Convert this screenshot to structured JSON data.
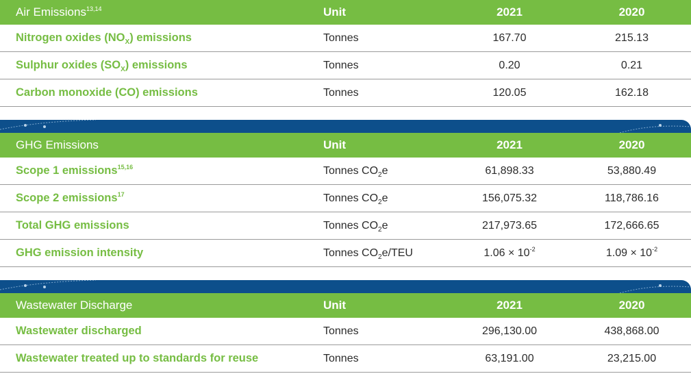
{
  "sections": [
    {
      "title": "Air Emissions",
      "title_sup": "13,14",
      "headers": {
        "unit": "Unit",
        "y2021": "2021",
        "y2020": "2020"
      },
      "rows": [
        {
          "pre": "Nitrogen oxides (NO",
          "sub": "X",
          "post": ") emissions",
          "unit_pre": "Tonnes",
          "unit_sub": "",
          "unit_post": "",
          "v2021": "167.70",
          "v2020": "215.13"
        },
        {
          "pre": "Sulphur oxides (SO",
          "sub": "X",
          "post": ") emissions",
          "unit_pre": "Tonnes",
          "unit_sub": "",
          "unit_post": "",
          "v2021": "0.20",
          "v2020": "0.21"
        },
        {
          "pre": "Carbon monoxide (CO) emissions",
          "sub": "",
          "post": "",
          "unit_pre": "Tonnes",
          "unit_sub": "",
          "unit_post": "",
          "v2021": "120.05",
          "v2020": "162.18"
        }
      ]
    },
    {
      "title": "GHG Emissions",
      "title_sup": "",
      "headers": {
        "unit": "Unit",
        "y2021": "2021",
        "y2020": "2020"
      },
      "rows": [
        {
          "pre": "Scope 1 emissions",
          "sup": "15,16",
          "unit_pre": "Tonnes CO",
          "unit_sub": "2",
          "unit_post": "e",
          "v2021": "61,898.33",
          "v2020": "53,880.49"
        },
        {
          "pre": "Scope 2 emissions",
          "sup": "17",
          "unit_pre": "Tonnes CO",
          "unit_sub": "2",
          "unit_post": "e",
          "v2021": "156,075.32",
          "v2020": "118,786.16"
        },
        {
          "pre": "Total GHG emissions",
          "sup": "",
          "unit_pre": "Tonnes CO",
          "unit_sub": "2",
          "unit_post": "e",
          "v2021": "217,973.65",
          "v2020": "172,666.65"
        },
        {
          "pre": "GHG emission intensity",
          "sup": "",
          "unit_pre": "Tonnes CO",
          "unit_sub": "2",
          "unit_post": "e/TEU",
          "v2021": "1.06 × 10",
          "v2021_exp": "-2",
          "v2020": "1.09 × 10",
          "v2020_exp": "-2"
        }
      ]
    },
    {
      "title": "Wastewater Discharge",
      "title_sup": "",
      "headers": {
        "unit": "Unit",
        "y2021": "2021",
        "y2020": "2020"
      },
      "rows": [
        {
          "pre": "Wastewater discharged",
          "unit_pre": "Tonnes",
          "v2021": "296,130.00",
          "v2020": "438,868.00"
        },
        {
          "pre": "Wastewater treated up to standards for reuse",
          "unit_pre": "Tonnes",
          "v2021": "63,191.00",
          "v2020": "23,215.00"
        }
      ]
    }
  ],
  "colors": {
    "green": "#76bd43",
    "blue": "#0d4f8b",
    "text": "#2b2b2b",
    "rule": "#9a9a9a"
  }
}
